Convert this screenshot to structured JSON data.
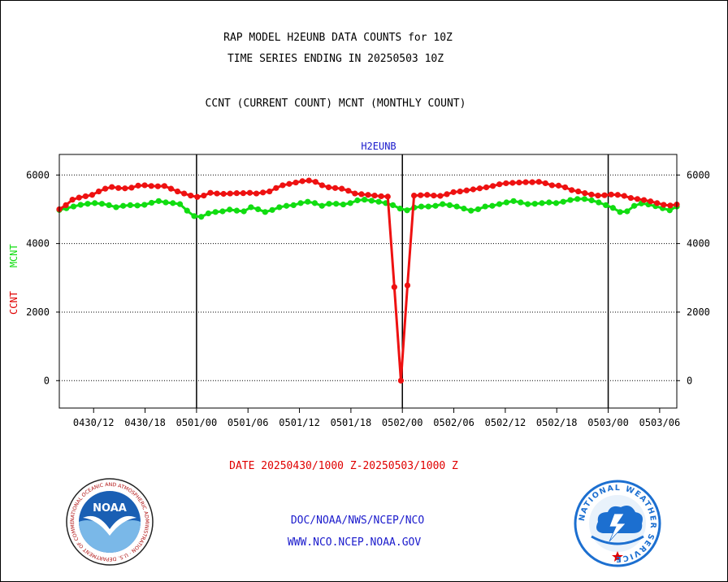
{
  "header": {
    "title_line1": "RAP MODEL H2EUNB DATA COUNTS for 10Z",
    "title_line2": "TIME SERIES ENDING IN 20250503 10Z",
    "subtitle": "CCNT (CURRENT COUNT) MCNT (MONTHLY COUNT)"
  },
  "footer": {
    "date_range": "DATE 20250430/1000 Z-20250503/1000 Z",
    "org_line": "DOC/NOAA/NWS/NCEP/NCO",
    "url_line": "WWW.NCO.NCEP.NOAA.GOV"
  },
  "logos": {
    "noaa_text": "NOAA",
    "noaa_ring": "NATIONAL OCEANIC AND ATMOSPHERIC ADMINISTRATION · U.S. DEPARTMENT OF COMMERCE ·",
    "nws_ring": "NATIONAL WEATHER SERVICE"
  },
  "colors": {
    "ccnt": "#ee1111",
    "mcnt": "#11dd11",
    "title_blue": "#1a1acc",
    "noaa_blue": "#1a5fb4",
    "nws_blue": "#1c6fd0"
  },
  "chart_data": {
    "type": "line",
    "title": "H2EUNB",
    "ylabel_parts": [
      "CCNT",
      "MCNT"
    ],
    "ylim": [
      -800,
      6600
    ],
    "yticks": [
      0,
      2000,
      4000,
      6000
    ],
    "ytick_labels": [
      "0",
      "2000",
      "4000",
      "6000"
    ],
    "grid": true,
    "xlim": [
      -2,
      70
    ],
    "xticks": [
      2,
      8,
      14,
      20,
      26,
      32,
      38,
      44,
      50,
      56,
      62,
      68
    ],
    "xtick_labels": [
      "0430/12",
      "0430/18",
      "0501/00",
      "0501/06",
      "0501/12",
      "0501/18",
      "0502/00",
      "0502/06",
      "0502/12",
      "0502/18",
      "0503/00",
      "0503/06"
    ],
    "day_lines": [
      14,
      38,
      62
    ],
    "x_start": -2,
    "series": [
      {
        "name": "CCNT",
        "color": "#ee1111",
        "values": [
          5000,
          5120,
          5280,
          5340,
          5380,
          5420,
          5520,
          5600,
          5650,
          5620,
          5610,
          5630,
          5690,
          5700,
          5680,
          5670,
          5680,
          5600,
          5520,
          5460,
          5400,
          5360,
          5400,
          5480,
          5460,
          5450,
          5460,
          5470,
          5470,
          5480,
          5460,
          5490,
          5520,
          5620,
          5700,
          5740,
          5780,
          5820,
          5840,
          5800,
          5700,
          5640,
          5620,
          5600,
          5540,
          5460,
          5440,
          5420,
          5400,
          5380,
          5370,
          2730,
          0,
          2780,
          5400,
          5410,
          5420,
          5400,
          5390,
          5440,
          5500,
          5520,
          5550,
          5580,
          5610,
          5640,
          5680,
          5730,
          5760,
          5770,
          5780,
          5790,
          5790,
          5800,
          5760,
          5700,
          5690,
          5640,
          5560,
          5520,
          5470,
          5430,
          5400,
          5410,
          5430,
          5420,
          5390,
          5330,
          5300,
          5270,
          5230,
          5180,
          5130,
          5110,
          5140
        ]
      },
      {
        "name": "MCNT",
        "color": "#11dd11",
        "values": [
          4980,
          5030,
          5080,
          5130,
          5160,
          5180,
          5160,
          5120,
          5060,
          5100,
          5120,
          5110,
          5130,
          5190,
          5240,
          5200,
          5180,
          5150,
          4960,
          4800,
          4780,
          4880,
          4920,
          4940,
          4990,
          4960,
          4940,
          5060,
          5000,
          4920,
          4980,
          5060,
          5100,
          5120,
          5180,
          5220,
          5180,
          5100,
          5160,
          5160,
          5140,
          5180,
          5260,
          5280,
          5250,
          5220,
          5180,
          5120,
          5020,
          4970,
          5050,
          5080,
          5080,
          5100,
          5150,
          5120,
          5080,
          5020,
          4960,
          5000,
          5080,
          5100,
          5150,
          5200,
          5240,
          5200,
          5150,
          5160,
          5180,
          5200,
          5180,
          5220,
          5270,
          5300,
          5300,
          5260,
          5200,
          5120,
          5040,
          4920,
          4940,
          5100,
          5170,
          5140,
          5090,
          5030,
          4970,
          5080
        ]
      }
    ]
  }
}
